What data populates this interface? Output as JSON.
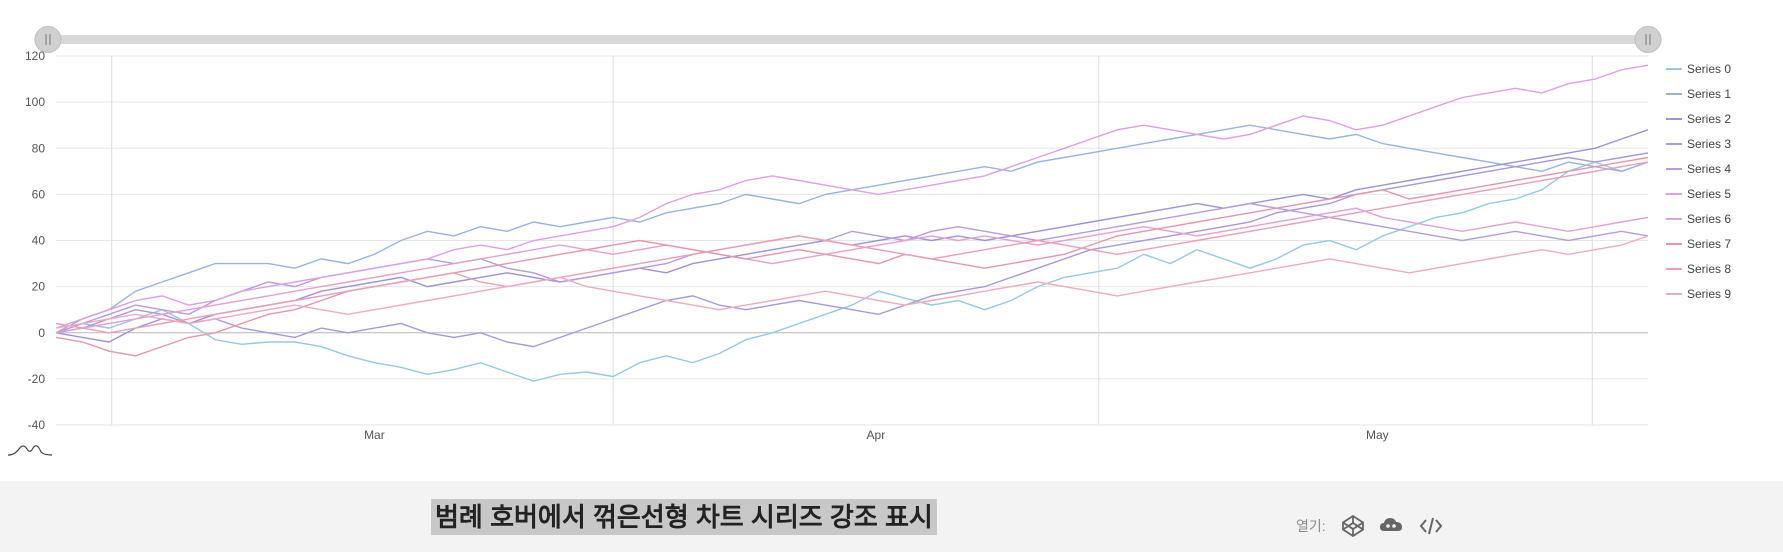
{
  "chart_data": {
    "type": "line",
    "title": "",
    "xlabel": "",
    "ylabel": "",
    "ylim": [
      -40,
      120
    ],
    "yticks": [
      -40,
      -20,
      0,
      20,
      40,
      60,
      80,
      100,
      120
    ],
    "xlim": [
      0,
      100
    ],
    "xticks": [
      {
        "label": "Mar",
        "x": 20
      },
      {
        "label": "Apr",
        "x": 51.5
      },
      {
        "label": "May",
        "x": 83
      }
    ],
    "legend": "right",
    "grid": true,
    "range_slider": {
      "start": 0,
      "end": 1
    },
    "series": [
      {
        "name": "Series 0",
        "color": "#8fcbe6",
        "values": [
          0,
          4,
          2,
          6,
          10,
          4,
          -3,
          -5,
          -4,
          -4,
          -6,
          -10,
          -13,
          -15,
          -18,
          -16,
          -13,
          -17,
          -21,
          -18,
          -17,
          -19,
          -13,
          -10,
          -13,
          -9,
          -3,
          0,
          4,
          8,
          12,
          18,
          15,
          12,
          14,
          10,
          14,
          20,
          24,
          26,
          28,
          34,
          30,
          36,
          32,
          28,
          32,
          38,
          40,
          36,
          42,
          46,
          50,
          52,
          56,
          58,
          62,
          70,
          74,
          70,
          74
        ]
      },
      {
        "name": "Series 1",
        "color": "#94b4e8",
        "values": [
          0,
          6,
          10,
          18,
          22,
          26,
          30,
          30,
          30,
          28,
          32,
          30,
          34,
          40,
          44,
          42,
          46,
          44,
          48,
          46,
          48,
          50,
          48,
          52,
          54,
          56,
          60,
          58,
          56,
          60,
          62,
          64,
          66,
          68,
          70,
          72,
          70,
          74,
          76,
          78,
          80,
          82,
          84,
          86,
          88,
          90,
          88,
          86,
          84,
          86,
          82,
          80,
          78,
          76,
          74,
          72,
          70,
          74,
          72,
          70,
          74
        ]
      },
      {
        "name": "Series 2",
        "color": "#9a92e0",
        "values": [
          0,
          -2,
          -4,
          2,
          6,
          4,
          8,
          10,
          12,
          14,
          18,
          20,
          22,
          24,
          20,
          22,
          24,
          26,
          24,
          22,
          24,
          26,
          28,
          26,
          30,
          32,
          34,
          36,
          38,
          40,
          38,
          40,
          42,
          40,
          42,
          40,
          42,
          44,
          46,
          48,
          50,
          52,
          54,
          56,
          54,
          56,
          58,
          60,
          58,
          62,
          64,
          66,
          68,
          70,
          72,
          74,
          76,
          78,
          80,
          84,
          88
        ]
      },
      {
        "name": "Series 3",
        "color": "#a896e4",
        "values": [
          0,
          2,
          6,
          10,
          8,
          4,
          6,
          2,
          0,
          -2,
          2,
          0,
          2,
          4,
          0,
          -2,
          0,
          -4,
          -6,
          -2,
          2,
          6,
          10,
          14,
          16,
          12,
          10,
          12,
          14,
          12,
          10,
          8,
          12,
          16,
          18,
          20,
          24,
          28,
          32,
          36,
          38,
          40,
          42,
          44,
          46,
          48,
          52,
          54,
          56,
          60,
          62,
          64,
          66,
          68,
          70,
          72,
          74,
          76,
          74,
          76,
          78
        ]
      },
      {
        "name": "Series 4",
        "color": "#b79ae8",
        "values": [
          0,
          4,
          8,
          12,
          10,
          8,
          14,
          18,
          22,
          20,
          24,
          26,
          28,
          30,
          32,
          30,
          32,
          28,
          26,
          22,
          24,
          26,
          28,
          30,
          34,
          36,
          38,
          40,
          42,
          40,
          44,
          42,
          40,
          44,
          46,
          44,
          42,
          40,
          42,
          44,
          46,
          48,
          50,
          52,
          54,
          56,
          54,
          52,
          50,
          48,
          46,
          44,
          42,
          40,
          42,
          44,
          42,
          40,
          42,
          44,
          42
        ]
      },
      {
        "name": "Series 5",
        "color": "#df9ee8",
        "values": [
          2,
          6,
          10,
          14,
          16,
          12,
          14,
          18,
          20,
          22,
          24,
          26,
          28,
          30,
          32,
          36,
          38,
          36,
          40,
          42,
          44,
          46,
          50,
          56,
          60,
          62,
          66,
          68,
          66,
          64,
          62,
          60,
          62,
          64,
          66,
          68,
          72,
          76,
          80,
          84,
          88,
          90,
          88,
          86,
          84,
          86,
          90,
          94,
          92,
          88,
          90,
          94,
          98,
          102,
          104,
          106,
          104,
          108,
          110,
          114,
          116
        ]
      },
      {
        "name": "Series 6",
        "color": "#e89ed4",
        "values": [
          0,
          2,
          4,
          6,
          8,
          10,
          12,
          14,
          16,
          18,
          20,
          22,
          24,
          26,
          28,
          30,
          32,
          34,
          36,
          38,
          36,
          34,
          36,
          38,
          36,
          34,
          32,
          30,
          32,
          34,
          36,
          38,
          40,
          42,
          40,
          42,
          40,
          38,
          40,
          42,
          44,
          46,
          44,
          42,
          44,
          46,
          48,
          50,
          52,
          54,
          50,
          48,
          46,
          44,
          46,
          48,
          46,
          44,
          46,
          48,
          50
        ]
      },
      {
        "name": "Series 7",
        "color": "#ea94ac",
        "values": [
          -2,
          -4,
          -8,
          -10,
          -6,
          -2,
          0,
          4,
          8,
          10,
          14,
          18,
          20,
          22,
          24,
          26,
          28,
          30,
          32,
          34,
          36,
          38,
          40,
          38,
          36,
          34,
          32,
          34,
          36,
          34,
          32,
          30,
          34,
          32,
          30,
          28,
          30,
          32,
          34,
          38,
          42,
          44,
          46,
          48,
          50,
          52,
          54,
          56,
          58,
          60,
          62,
          58,
          60,
          62,
          64,
          66,
          68,
          70,
          72,
          74,
          76
        ]
      },
      {
        "name": "Series 8",
        "color": "#f09cb4",
        "values": [
          4,
          2,
          0,
          2,
          4,
          6,
          8,
          10,
          12,
          14,
          16,
          18,
          20,
          22,
          24,
          26,
          22,
          20,
          22,
          24,
          26,
          28,
          30,
          32,
          34,
          36,
          38,
          40,
          42,
          40,
          38,
          36,
          34,
          32,
          34,
          36,
          38,
          40,
          38,
          36,
          34,
          36,
          38,
          40,
          42,
          44,
          46,
          48,
          50,
          52,
          54,
          56,
          58,
          60,
          62,
          64,
          66,
          68,
          70,
          72,
          74
        ]
      },
      {
        "name": "Series 9",
        "color": "#f4a8bc",
        "values": [
          2,
          4,
          6,
          8,
          6,
          4,
          6,
          8,
          10,
          12,
          10,
          8,
          10,
          12,
          14,
          16,
          18,
          20,
          22,
          24,
          20,
          18,
          16,
          14,
          12,
          10,
          12,
          14,
          16,
          18,
          16,
          14,
          12,
          14,
          16,
          18,
          20,
          22,
          20,
          18,
          16,
          18,
          20,
          22,
          24,
          26,
          28,
          30,
          32,
          30,
          28,
          26,
          28,
          30,
          32,
          34,
          36,
          34,
          36,
          38,
          42
        ]
      }
    ]
  },
  "footer": {
    "title": "범례 호버에서 꺾은선형 차트 시리즈 강조 표시",
    "open_label": "열기:",
    "icons": [
      "codepen-icon",
      "codesandbox-icon",
      "code-icon"
    ]
  },
  "icons": {
    "sparkline": "sparkline-icon",
    "slider_handles": [
      "range-handle-icon",
      "range-handle-icon"
    ]
  }
}
